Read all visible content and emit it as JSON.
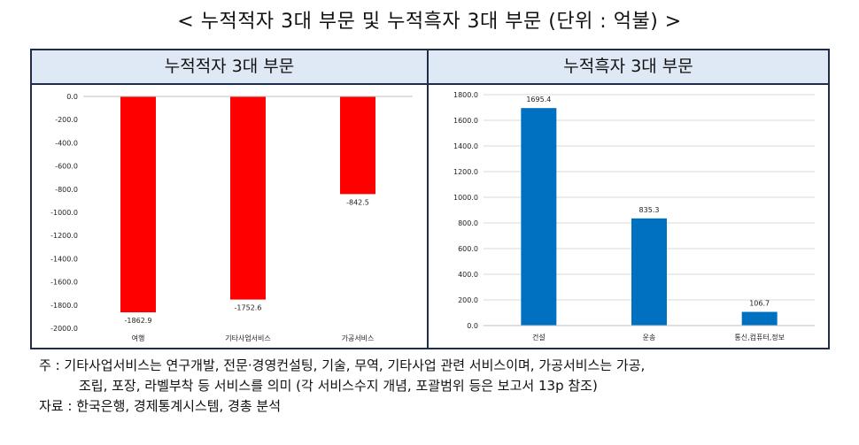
{
  "title": "< 누적적자 3대 부문 및 누적흑자 3대 부문 (단위 : 억불) >",
  "chart_data": [
    {
      "type": "bar",
      "panel_title": "누적적자 3대 부문",
      "categories": [
        "여행",
        "기타사업서비스",
        "가공서비스"
      ],
      "values": [
        -1862.9,
        -1752.6,
        -842.5
      ],
      "value_labels": [
        "-1862.9",
        "-1752.6",
        "-842.5"
      ],
      "ylim": [
        -2000,
        0
      ],
      "yticks": [
        "0.0",
        "-200.0",
        "-400.0",
        "-600.0",
        "-800.0",
        "-1000.0",
        "-1200.0",
        "-1400.0",
        "-1600.0",
        "-1800.0",
        "-2000.0"
      ],
      "ytick_values": [
        0,
        -200,
        -400,
        -600,
        -800,
        -1000,
        -1200,
        -1400,
        -1600,
        -1800,
        -2000
      ],
      "color": "#ff0000",
      "grid": false
    },
    {
      "type": "bar",
      "panel_title": "누적흑자 3대 부문",
      "categories": [
        "건설",
        "운송",
        "통신,컴퓨터,정보"
      ],
      "values": [
        1695.4,
        835.3,
        106.7
      ],
      "value_labels": [
        "1695.4",
        "835.3",
        "106.7"
      ],
      "ylim": [
        0,
        1800
      ],
      "yticks": [
        "1800.0",
        "1600.0",
        "1400.0",
        "1200.0",
        "1000.0",
        "800.0",
        "600.0",
        "400.0",
        "200.0",
        "0.0"
      ],
      "ytick_values": [
        1800,
        1600,
        1400,
        1200,
        1000,
        800,
        600,
        400,
        200,
        0
      ],
      "color": "#0070c0",
      "grid": true
    }
  ],
  "notes": {
    "line1": "주 :  기타사업서비스는 연구개발, 전문·경영컨설팅, 기술, 무역, 기타사업 관련 서비스이며, 가공서비스는 가공,",
    "line2": "조립, 포장, 라벨부착 등 서비스를 의미 (각 서비스수지 개념, 포괄범위 등은 보고서 13p 참조)",
    "source": "자료 : 한국은행, 경제통계시스템, 경총 분석"
  }
}
